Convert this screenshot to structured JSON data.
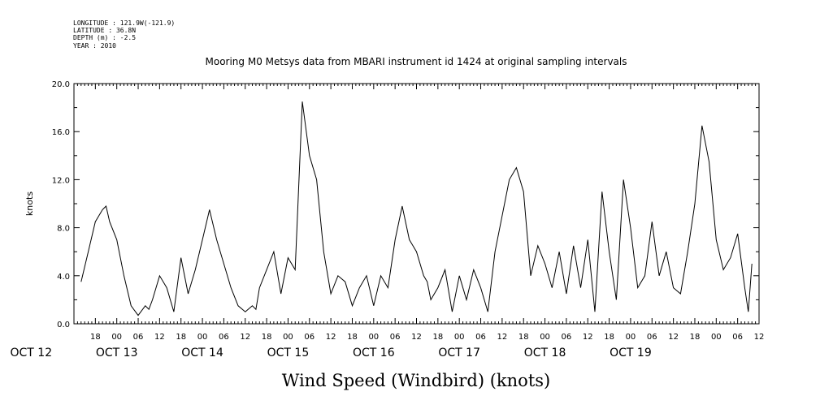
{
  "header": {
    "longitude": "LONGITUDE : 121.9W(-121.9)",
    "latitude": "LATITUDE : 36.8N",
    "depth": "DEPTH (m) : -2.5",
    "year": "YEAR : 2010"
  },
  "chart_data": {
    "type": "line",
    "title": "Mooring M0 Metsys data from MBARI instrument id 1424 at original sampling intervals",
    "xlabel": "Wind Speed (Windbird) (knots)",
    "ylabel": "knots",
    "ylim": [
      0,
      20
    ],
    "yticks": [
      "0.0",
      "4.0",
      "8.0",
      "12.0",
      "16.0",
      "20.0"
    ],
    "x_unit": "hours since OCT 12 00:00",
    "xlim": [
      12,
      204
    ],
    "hour_tick_labels": [
      "18",
      "00",
      "06",
      "12",
      "18",
      "00",
      "06",
      "12",
      "18",
      "00",
      "06",
      "12",
      "18",
      "00",
      "06",
      "12",
      "18",
      "00",
      "06",
      "12",
      "18",
      "00",
      "06",
      "12",
      "18",
      "00",
      "06",
      "12",
      "18",
      "00",
      "06",
      "12"
    ],
    "day_labels": [
      "OCT 12",
      "OCT 13",
      "OCT 14",
      "OCT 15",
      "OCT 16",
      "OCT 17",
      "OCT 18",
      "OCT 19"
    ],
    "grid": false,
    "series": [
      {
        "x": [
          14,
          16,
          18,
          20,
          21,
          22,
          24,
          26,
          28,
          30,
          32,
          33,
          34,
          36,
          38,
          40,
          42,
          44,
          46,
          48,
          50,
          52,
          54,
          56,
          58,
          60,
          62,
          63,
          64,
          66,
          68,
          70,
          72,
          74,
          76,
          78,
          80,
          82,
          84,
          86,
          88,
          90,
          92,
          94,
          96,
          98,
          100,
          102,
          104,
          106,
          108,
          110,
          111,
          112,
          114,
          116,
          118,
          120,
          122,
          124,
          126,
          128,
          130,
          132,
          134,
          136,
          138,
          140,
          142,
          144,
          146,
          148,
          150,
          152,
          154,
          156,
          158,
          160,
          162,
          164,
          166,
          168,
          170,
          172,
          174,
          176,
          178,
          180,
          182,
          184,
          186,
          188,
          190,
          192,
          194,
          196,
          198,
          200,
          201,
          202
        ],
        "y": [
          3.5,
          6,
          8.5,
          9.5,
          9.8,
          8.5,
          7,
          4,
          1.5,
          0.7,
          1.5,
          1.2,
          2,
          4,
          3,
          1,
          5.5,
          2.5,
          4.5,
          7,
          9.5,
          7,
          5,
          3,
          1.5,
          1,
          1.5,
          1.2,
          3,
          4.5,
          6,
          2.5,
          5.5,
          4.5,
          18.5,
          14,
          12,
          6,
          2.5,
          4,
          3.5,
          1.5,
          3,
          4,
          1.5,
          4,
          3,
          7,
          9.8,
          7,
          6,
          4,
          3.5,
          2,
          3,
          4.5,
          1,
          4,
          2,
          4.5,
          3,
          1,
          6,
          9,
          12,
          13,
          11,
          4,
          6.5,
          5,
          3,
          6,
          2.5,
          6.5,
          3,
          7,
          1,
          11,
          6,
          2,
          12,
          8,
          3,
          4,
          8.5,
          4,
          6,
          3,
          2.5,
          6,
          10,
          16.5,
          13.5,
          7,
          4.5,
          5.5,
          7.5,
          3,
          1,
          5
        ]
      }
    ]
  }
}
